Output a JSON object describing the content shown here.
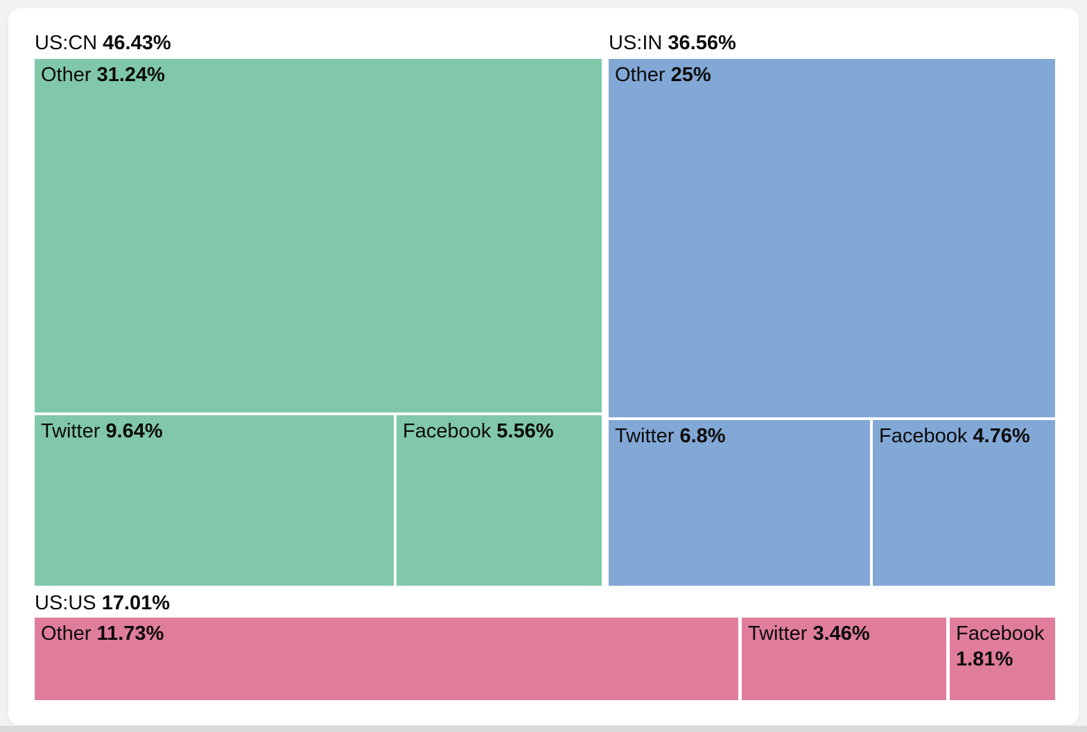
{
  "chart_data": {
    "type": "treemap",
    "unit": "%",
    "legend": "none",
    "groups": [
      {
        "label": "US:CN",
        "value": 46.43,
        "value_label": "46.43%",
        "color": "#80c8a9",
        "children": [
          {
            "label": "Other",
            "value": 31.24,
            "value_label": "31.24%"
          },
          {
            "label": "Twitter",
            "value": 9.64,
            "value_label": "9.64%"
          },
          {
            "label": "Facebook",
            "value": 5.56,
            "value_label": "5.56%"
          }
        ]
      },
      {
        "label": "US:IN",
        "value": 36.56,
        "value_label": "36.56%",
        "color": "#82a8d6",
        "children": [
          {
            "label": "Other",
            "value": 25,
            "value_label": "25%"
          },
          {
            "label": "Twitter",
            "value": 6.8,
            "value_label": "6.8%"
          },
          {
            "label": "Facebook",
            "value": 4.76,
            "value_label": "4.76%"
          }
        ]
      },
      {
        "label": "US:US",
        "value": 17.01,
        "value_label": "17.01%",
        "color": "#e07d9b",
        "children": [
          {
            "label": "Other",
            "value": 11.73,
            "value_label": "11.73%"
          },
          {
            "label": "Twitter",
            "value": 3.46,
            "value_label": "3.46%"
          },
          {
            "label": "Facebook",
            "value": 1.81,
            "value_label": "1.81%"
          }
        ]
      }
    ]
  }
}
